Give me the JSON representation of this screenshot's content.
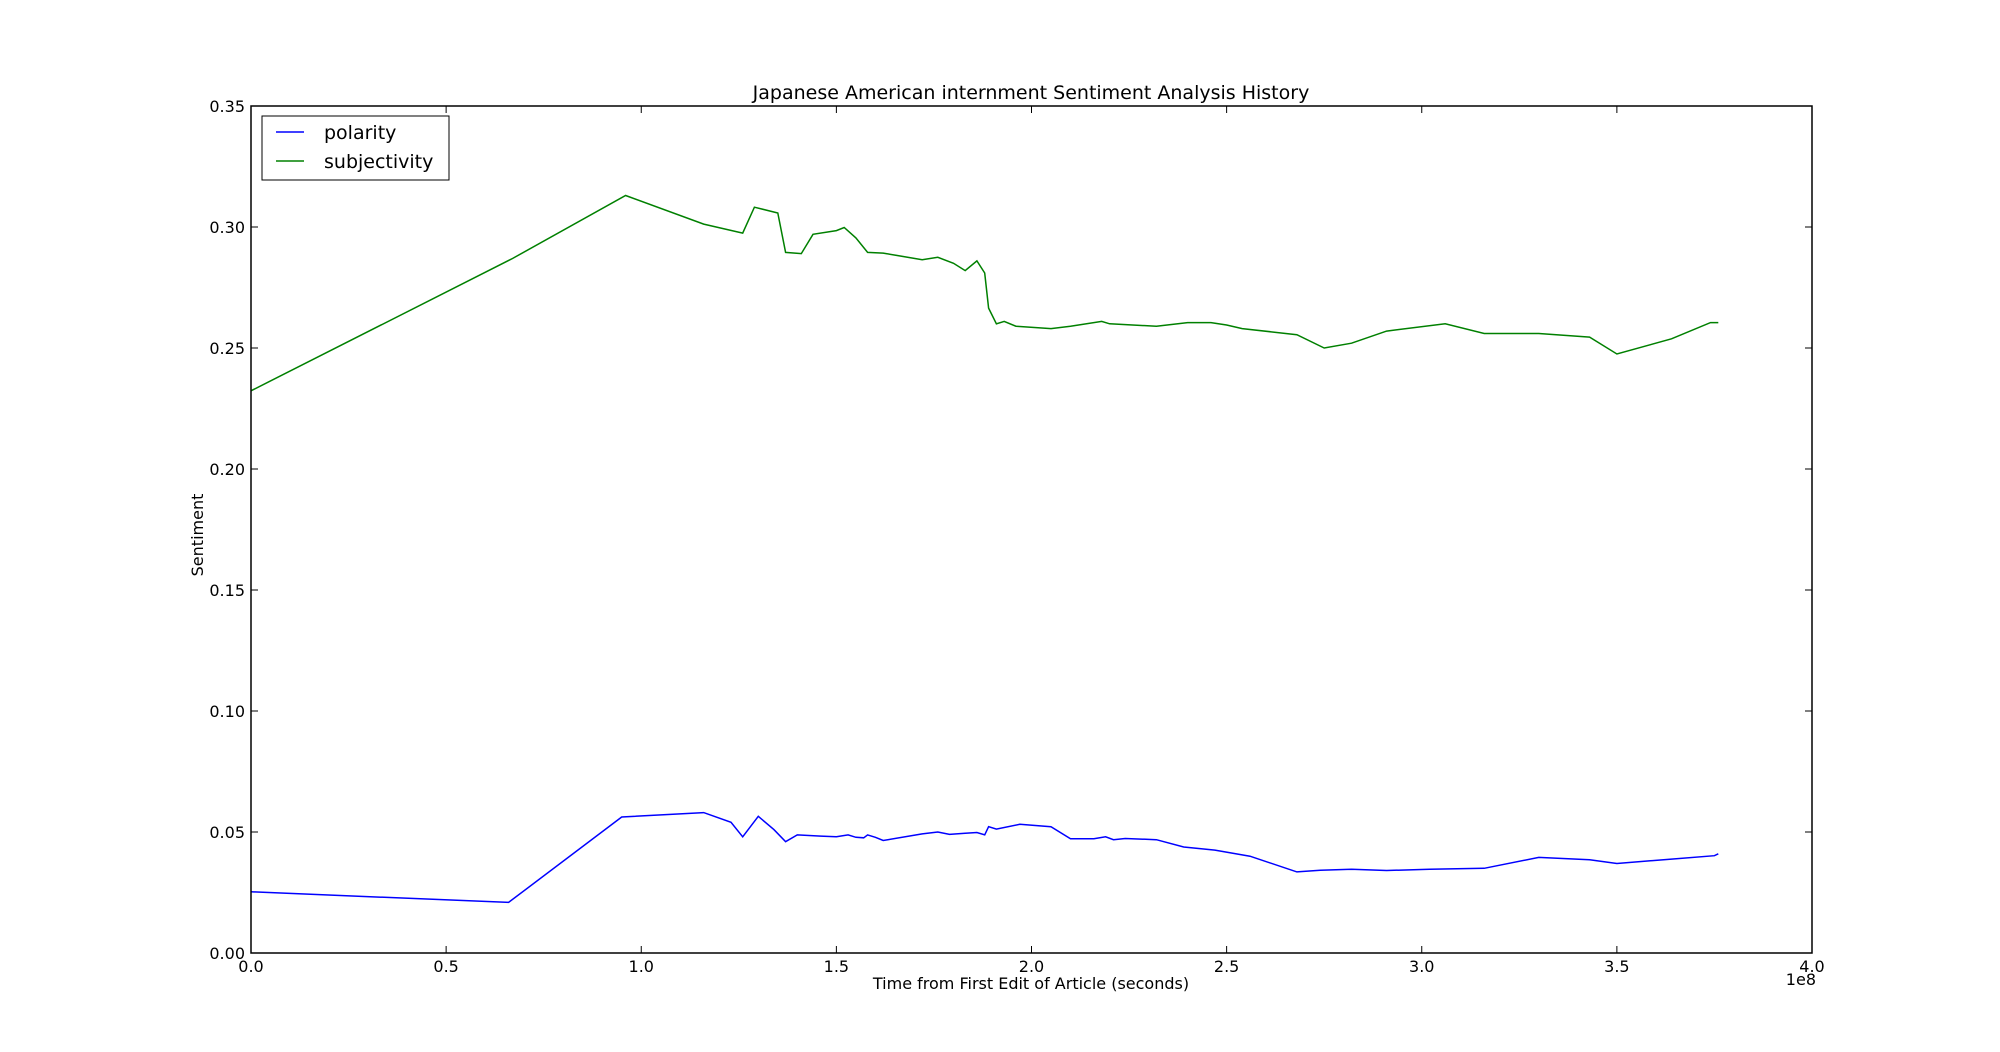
{
  "chart_data": {
    "type": "line",
    "title": "Japanese American internment Sentiment Analysis History",
    "xlabel": "Time from First Edit of Article (seconds)",
    "ylabel": "Sentiment",
    "x_offset_text": "1e8",
    "xlim": [
      0,
      400000000
    ],
    "ylim": [
      0,
      0.35
    ],
    "x_tick_values": [
      0,
      50000000,
      100000000,
      150000000,
      200000000,
      250000000,
      300000000,
      350000000,
      400000000
    ],
    "x_tick_labels": [
      "0.0",
      "0.5",
      "1.0",
      "1.5",
      "2.0",
      "2.5",
      "3.0",
      "3.5",
      "4.0"
    ],
    "y_tick_values": [
      0,
      0.05,
      0.1,
      0.15,
      0.2,
      0.25,
      0.3,
      0.35
    ],
    "y_tick_labels": [
      "0.00",
      "0.05",
      "0.10",
      "0.15",
      "0.20",
      "0.25",
      "0.30",
      "0.35"
    ],
    "grid": false,
    "legend_position": "top-left",
    "series": [
      {
        "name": "polarity",
        "color": "#0000ff",
        "points": [
          [
            0,
            0.0253
          ],
          [
            66000000,
            0.0209
          ],
          [
            95000000,
            0.0562
          ],
          [
            116000000,
            0.058
          ],
          [
            123000000,
            0.054
          ],
          [
            126000000,
            0.048
          ],
          [
            130000000,
            0.0565
          ],
          [
            134000000,
            0.051
          ],
          [
            137000000,
            0.046
          ],
          [
            140000000,
            0.0488
          ],
          [
            146000000,
            0.0483
          ],
          [
            150000000,
            0.048
          ],
          [
            153000000,
            0.0488
          ],
          [
            155000000,
            0.0478
          ],
          [
            157000000,
            0.0476
          ],
          [
            158000000,
            0.0488
          ],
          [
            160000000,
            0.0478
          ],
          [
            162000000,
            0.0465
          ],
          [
            172000000,
            0.0492
          ],
          [
            176000000,
            0.05
          ],
          [
            179000000,
            0.049
          ],
          [
            183000000,
            0.0495
          ],
          [
            186000000,
            0.0498
          ],
          [
            188000000,
            0.0488
          ],
          [
            189000000,
            0.0522
          ],
          [
            191000000,
            0.0512
          ],
          [
            197000000,
            0.0532
          ],
          [
            205000000,
            0.0522
          ],
          [
            210000000,
            0.0472
          ],
          [
            216000000,
            0.0472
          ],
          [
            219000000,
            0.048
          ],
          [
            221000000,
            0.0468
          ],
          [
            224000000,
            0.0473
          ],
          [
            232000000,
            0.0468
          ],
          [
            239000000,
            0.0438
          ],
          [
            247000000,
            0.0425
          ],
          [
            256000000,
            0.04
          ],
          [
            268000000,
            0.0335
          ],
          [
            274000000,
            0.0342
          ],
          [
            282000000,
            0.0346
          ],
          [
            291000000,
            0.0341
          ],
          [
            302000000,
            0.0346
          ],
          [
            316000000,
            0.035
          ],
          [
            330000000,
            0.0395
          ],
          [
            343000000,
            0.0385
          ],
          [
            350000000,
            0.037
          ],
          [
            364000000,
            0.0388
          ],
          [
            375000000,
            0.0402
          ],
          [
            376000000,
            0.041
          ]
        ]
      },
      {
        "name": "subjectivity",
        "color": "#008000",
        "points": [
          [
            0,
            0.2323
          ],
          [
            67000000,
            0.287
          ],
          [
            96000000,
            0.313
          ],
          [
            116000000,
            0.3012
          ],
          [
            126000000,
            0.2975
          ],
          [
            129000000,
            0.3082
          ],
          [
            135000000,
            0.3058
          ],
          [
            137000000,
            0.2895
          ],
          [
            141000000,
            0.289
          ],
          [
            144000000,
            0.297
          ],
          [
            150000000,
            0.2985
          ],
          [
            152000000,
            0.2998
          ],
          [
            155000000,
            0.2955
          ],
          [
            158000000,
            0.2895
          ],
          [
            162000000,
            0.2892
          ],
          [
            172000000,
            0.2865
          ],
          [
            176000000,
            0.2875
          ],
          [
            180000000,
            0.285
          ],
          [
            183000000,
            0.282
          ],
          [
            186000000,
            0.286
          ],
          [
            188000000,
            0.281
          ],
          [
            189000000,
            0.2665
          ],
          [
            191000000,
            0.26
          ],
          [
            193000000,
            0.261
          ],
          [
            196000000,
            0.259
          ],
          [
            205000000,
            0.258
          ],
          [
            210000000,
            0.259
          ],
          [
            218000000,
            0.261
          ],
          [
            220000000,
            0.26
          ],
          [
            232000000,
            0.259
          ],
          [
            240000000,
            0.2605
          ],
          [
            246000000,
            0.2605
          ],
          [
            250000000,
            0.2595
          ],
          [
            254000000,
            0.258
          ],
          [
            268000000,
            0.2555
          ],
          [
            275000000,
            0.25
          ],
          [
            282000000,
            0.252
          ],
          [
            291000000,
            0.257
          ],
          [
            306000000,
            0.26
          ],
          [
            316000000,
            0.256
          ],
          [
            330000000,
            0.256
          ],
          [
            343000000,
            0.2545
          ],
          [
            350000000,
            0.2475
          ],
          [
            364000000,
            0.2538
          ],
          [
            374000000,
            0.2605
          ],
          [
            376000000,
            0.2605
          ]
        ]
      }
    ]
  }
}
